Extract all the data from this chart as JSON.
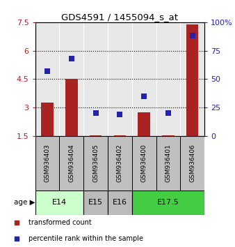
{
  "title": "GDS4591 / 1455094_s_at",
  "samples": [
    "GSM936403",
    "GSM936404",
    "GSM936405",
    "GSM936402",
    "GSM936400",
    "GSM936401",
    "GSM936406"
  ],
  "transformed_counts": [
    3.25,
    4.5,
    1.52,
    1.52,
    2.75,
    1.52,
    7.4
  ],
  "percentile_ranks": [
    57,
    68,
    20,
    19,
    35,
    20,
    88
  ],
  "ylim_left": [
    1.5,
    7.5
  ],
  "ylim_right": [
    0,
    100
  ],
  "yticks_left": [
    1.5,
    3.0,
    4.5,
    6.0,
    7.5
  ],
  "yticks_right": [
    0,
    25,
    50,
    75,
    100
  ],
  "ytick_labels_left": [
    "1.5",
    "3",
    "4.5",
    "6",
    "7.5"
  ],
  "ytick_labels_right": [
    "0",
    "25",
    "50",
    "75",
    "100%"
  ],
  "hlines": [
    3.0,
    4.5,
    6.0
  ],
  "bar_color": "#aa2222",
  "dot_color": "#2222aa",
  "age_groups": [
    {
      "label": "E14",
      "indices": [
        0,
        1
      ],
      "color": "#ccffcc"
    },
    {
      "label": "E15",
      "indices": [
        2
      ],
      "color": "#bbbbbb"
    },
    {
      "label": "E16",
      "indices": [
        3
      ],
      "color": "#bbbbbb"
    },
    {
      "label": "E17.5",
      "indices": [
        4,
        5,
        6
      ],
      "color": "#44cc44"
    }
  ],
  "legend_items": [
    {
      "label": "transformed count",
      "color": "#aa2222"
    },
    {
      "label": "percentile rank within the sample",
      "color": "#2222aa"
    }
  ],
  "sample_box_color": "#c0c0c0",
  "plot_bg_color": "#e8e8e8",
  "base_count": 1.5,
  "dot_size": 35,
  "bar_width": 0.5
}
